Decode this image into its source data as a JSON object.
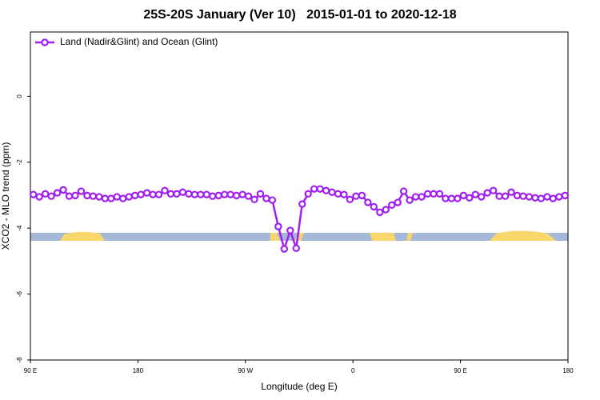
{
  "chart_data": {
    "type": "line",
    "title": "25S-20S January (Ver 10)   2015-01-01 to 2020-12-18",
    "x_label": "Longitude (deg E)",
    "y_label": "XCO2 - MLO trend (ppm)",
    "xlim": [
      90,
      540
    ],
    "xticks": [
      {
        "value": 90,
        "label": "90 E"
      },
      {
        "value": 180,
        "label": "180"
      },
      {
        "value": 270,
        "label": "90 W"
      },
      {
        "value": 360,
        "label": "0"
      },
      {
        "value": 450,
        "label": "90 E"
      },
      {
        "value": 540,
        "label": "180"
      }
    ],
    "ylim": [
      -8,
      1.95
    ],
    "yticks": [
      0,
      -2,
      -4,
      -6,
      -8
    ],
    "legend": "top-left",
    "x": [
      92.5,
      97.5,
      102.5,
      107.5,
      112.5,
      117.5,
      122.5,
      127.5,
      132.5,
      137.5,
      142.5,
      147.5,
      152.5,
      157.5,
      162.5,
      167.5,
      172.5,
      177.5,
      182.5,
      187.5,
      192.5,
      197.5,
      202.5,
      207.5,
      212.5,
      217.5,
      222.5,
      227.5,
      232.5,
      237.5,
      242.5,
      247.5,
      252.5,
      257.5,
      262.5,
      267.5,
      272.5,
      277.5,
      282.5,
      287.5,
      292.5,
      297.5,
      302.5,
      307.5,
      312.5,
      317.5,
      322.5,
      327.5,
      332.5,
      337.5,
      342.5,
      347.5,
      352.5,
      357.5,
      362.5,
      367.5,
      372.5,
      377.5,
      382.5,
      387.5,
      392.5,
      397.5,
      402.5,
      407.5,
      412.5,
      417.5,
      422.5,
      427.5,
      432.5,
      437.5,
      442.5,
      447.5,
      452.5,
      457.5,
      462.5,
      467.5,
      472.5,
      477.5,
      482.5,
      487.5,
      492.5,
      497.5,
      502.5,
      507.5,
      512.5,
      517.5,
      522.5,
      527.5,
      532.5,
      537.5
    ],
    "series": [
      {
        "name": "Land (Nadir&Glint) and Ocean (Glint)",
        "color": "#a020f0",
        "values": [
          -2.98,
          -3.05,
          -2.96,
          -3.03,
          -2.93,
          -2.84,
          -3.03,
          -3.01,
          -2.88,
          -3.01,
          -3.03,
          -3.05,
          -3.1,
          -3.1,
          -3.05,
          -3.1,
          -3.05,
          -3.01,
          -2.98,
          -2.93,
          -2.98,
          -2.98,
          -2.86,
          -2.96,
          -2.96,
          -2.91,
          -2.96,
          -2.98,
          -2.98,
          -2.98,
          -3.03,
          -3.01,
          -2.98,
          -2.98,
          -3.01,
          -2.98,
          -3.03,
          -3.13,
          -2.96,
          -3.1,
          -3.15,
          -3.95,
          -4.63,
          -4.07,
          -4.61,
          -3.27,
          -2.96,
          -2.81,
          -2.81,
          -2.86,
          -2.91,
          -2.96,
          -2.98,
          -3.13,
          -3.03,
          -3.01,
          -3.22,
          -3.35,
          -3.52,
          -3.44,
          -3.3,
          -3.22,
          -2.88,
          -3.15,
          -3.05,
          -3.05,
          -2.96,
          -2.96,
          -2.96,
          -3.1,
          -3.1,
          -3.1,
          -3.01,
          -3.08,
          -2.98,
          -3.05,
          -2.93,
          -2.86,
          -3.03,
          -3.03,
          -2.91,
          -3.01,
          -3.03,
          -3.05,
          -3.08,
          -3.1,
          -3.05,
          -3.1,
          -3.05,
          -3.01
        ]
      }
    ]
  }
}
